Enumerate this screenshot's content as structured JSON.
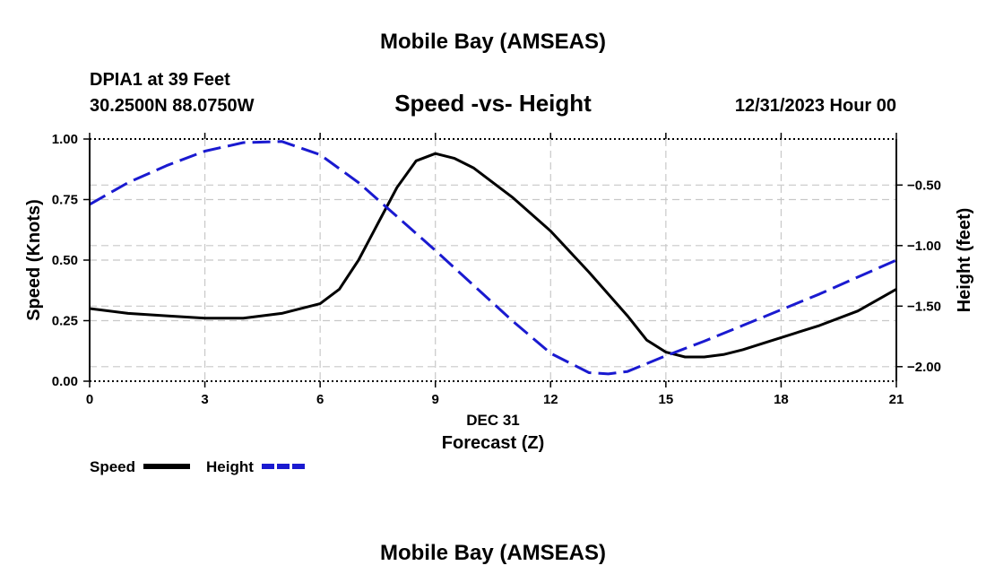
{
  "chart_data": {
    "type": "line",
    "title": "Mobile Bay (AMSEAS)",
    "footer_title": "Mobile Bay (AMSEAS)",
    "station": "DPIA1 at 39 Feet",
    "location": "30.2500N  88.0750W",
    "subtitle": "Speed -vs- Height",
    "datetime": "12/31/2023 Hour 00",
    "xlabel_date": "DEC 31",
    "xlabel": "Forecast (Z)",
    "ylabel_left": "Speed (Knots)",
    "ylabel_right": "Height (feet)",
    "xlim": [
      0,
      21
    ],
    "ylim_left": [
      0,
      1
    ],
    "ylim_right": [
      -2.12,
      -0.12
    ],
    "x_ticks": [
      0,
      3,
      6,
      9,
      12,
      15,
      18,
      21
    ],
    "x_tick_labels": [
      "0",
      "3",
      "6",
      "9",
      "12",
      "15",
      "18",
      "21"
    ],
    "y_left_ticks": [
      0,
      0.25,
      0.5,
      0.75,
      1.0
    ],
    "y_left_tick_labels": [
      "0.00",
      "0.25",
      "0.50",
      "0.75",
      "1.00"
    ],
    "y_right_ticks": [
      -2.0,
      -1.5,
      -1.0,
      -0.5
    ],
    "y_right_tick_labels": [
      "−2.00",
      "−1.50",
      "−1.00",
      "−0.50"
    ],
    "grid": true,
    "legend": "bottom-left",
    "series": [
      {
        "name": "Speed",
        "axis": "left",
        "color": "#000000",
        "style": "solid",
        "x": [
          0,
          1,
          2,
          3,
          4,
          5,
          6,
          6.5,
          7,
          7.5,
          8,
          8.5,
          9,
          9.5,
          10,
          11,
          12,
          13,
          14,
          14.5,
          15,
          15.5,
          16,
          16.5,
          17,
          18,
          19,
          20,
          21
        ],
        "values": [
          0.3,
          0.28,
          0.27,
          0.26,
          0.26,
          0.28,
          0.32,
          0.38,
          0.5,
          0.65,
          0.8,
          0.91,
          0.94,
          0.92,
          0.88,
          0.76,
          0.62,
          0.45,
          0.27,
          0.17,
          0.12,
          0.1,
          0.1,
          0.11,
          0.13,
          0.18,
          0.23,
          0.29,
          0.38
        ]
      },
      {
        "name": "Height",
        "axis": "right",
        "color": "#1a1ad0",
        "style": "dashed",
        "x": [
          0,
          1,
          2,
          3,
          4,
          5,
          6,
          7,
          8,
          9,
          10,
          11,
          12,
          13,
          13.5,
          14,
          15,
          16,
          17,
          18,
          19,
          20,
          21
        ],
        "values": [
          -0.66,
          -0.48,
          -0.34,
          -0.22,
          -0.15,
          -0.14,
          -0.25,
          -0.48,
          -0.76,
          -1.04,
          -1.33,
          -1.62,
          -1.89,
          -2.05,
          -2.06,
          -2.04,
          -1.91,
          -1.79,
          -1.66,
          -1.53,
          -1.4,
          -1.26,
          -1.12
        ]
      }
    ]
  }
}
